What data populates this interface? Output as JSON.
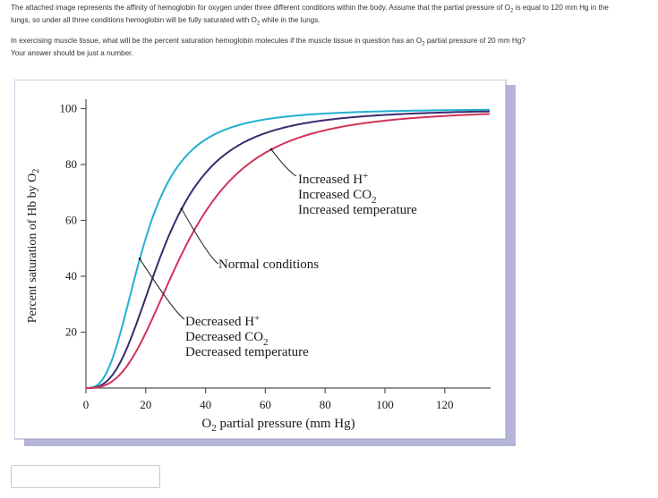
{
  "question": {
    "line1_a": "The attached image represents the affinity of hemoglobin for oxygen under three different conditions within the body. Assume that the partial pressure of O",
    "line1_sub": "2",
    "line1_b": " is equal to 120 mm Hg in the",
    "line2_a": "lungs, so under all three conditions hemoglobin will be fully saturated with O",
    "line2_sub": "2",
    "line2_b": " while in the lungs.",
    "line3_a": "In exercising muscle tissue, what will be the percent saturation hemoglobin molecules if the muscle tissue in question has an O",
    "line3_sub": "2",
    "line3_b": " partial pressure of 20 mm Hg?",
    "line4": "Your answer should be just a number."
  },
  "answer": {
    "value": "",
    "placeholder": ""
  },
  "colors": {
    "left_curve": "#1fb1d3",
    "normal_curve": "#3a2a6e",
    "right_curve": "#d0345a",
    "frame_shadow": "#b3b4d8",
    "frame_border": "#a0a2c8"
  },
  "chart_data": {
    "type": "line",
    "xlabel_prefix": "O",
    "xlabel_sub": "2",
    "xlabel_rest": " partial pressure (mm Hg)",
    "ylabel_prefix": "Percent saturation of Hb by O",
    "ylabel_sub": "2",
    "xlim": [
      0,
      135
    ],
    "ylim": [
      0,
      100
    ],
    "x_ticks": [
      0,
      20,
      40,
      60,
      80,
      100,
      120
    ],
    "y_ticks": [
      20,
      40,
      60,
      80,
      100
    ],
    "x_tick_labels": [
      "0",
      "20",
      "40",
      "60",
      "80",
      "100",
      "120"
    ],
    "y_tick_labels": [
      "20",
      "40",
      "60",
      "80",
      "100"
    ],
    "grid": false,
    "series": [
      {
        "key": "left",
        "p50": 19,
        "n": 2.8
      },
      {
        "key": "normal",
        "p50": 26,
        "n": 2.8
      },
      {
        "key": "right",
        "p50": 33,
        "n": 2.8
      }
    ],
    "annotations": [
      {
        "key": "increased",
        "lines": [
          {
            "base": "Increased H",
            "sup": "+"
          },
          {
            "base": "Increased CO",
            "sub": "2"
          },
          {
            "base": "Increased temperature"
          }
        ]
      },
      {
        "key": "normal",
        "lines": [
          {
            "base": "Normal conditions"
          }
        ]
      },
      {
        "key": "decreased",
        "lines": [
          {
            "base": "Decreased H",
            "sup": "+"
          },
          {
            "base": "Decreased CO",
            "sub": "2"
          },
          {
            "base": "Decreased temperature"
          }
        ]
      }
    ]
  }
}
